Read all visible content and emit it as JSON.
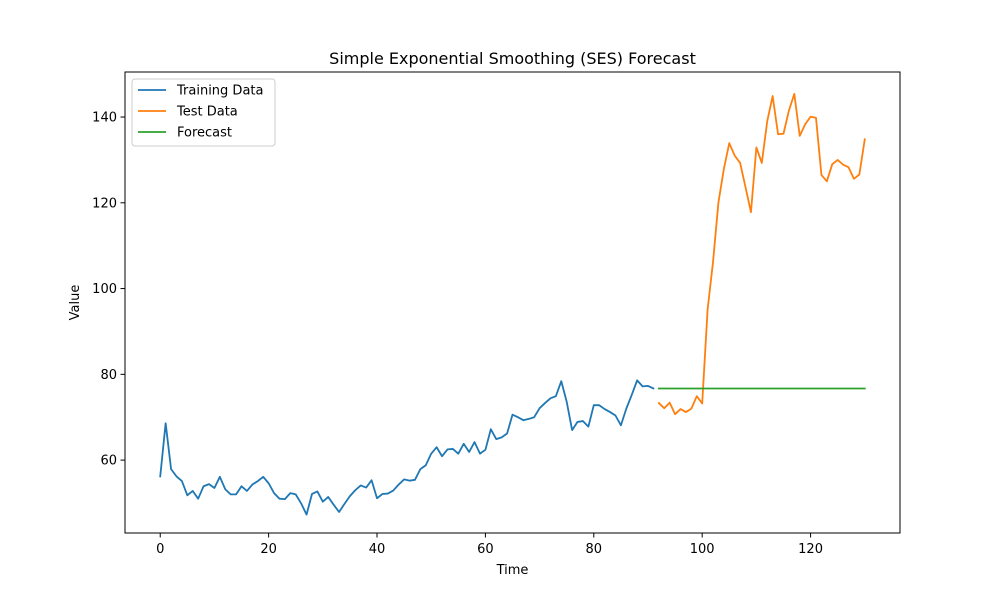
{
  "chart_data": {
    "type": "line",
    "title": "Simple Exponential Smoothing (SES) Forecast",
    "xlabel": "Time",
    "ylabel": "Value",
    "xlim": [
      -6.5,
      136.5
    ],
    "ylim": [
      43,
      150.5
    ],
    "xticks": [
      0,
      20,
      40,
      60,
      80,
      100,
      120
    ],
    "yticks": [
      60,
      80,
      100,
      120,
      140
    ],
    "grid": false,
    "legend_position": "top-left",
    "series": [
      {
        "name": "Training Data",
        "color": "#1f77b4",
        "x_start": 0,
        "values": [
          56.2,
          68.6,
          57.9,
          56.2,
          55.1,
          51.8,
          52.8,
          51.0,
          53.9,
          54.4,
          53.5,
          56.1,
          53.2,
          52.0,
          52.0,
          53.9,
          52.8,
          54.3,
          55.1,
          56.1,
          54.6,
          52.3,
          51.0,
          50.9,
          52.3,
          52.0,
          49.9,
          47.3,
          52.1,
          52.7,
          50.3,
          51.4,
          49.6,
          47.9,
          49.8,
          51.6,
          53.0,
          54.1,
          53.6,
          55.3,
          51.1,
          52.1,
          52.2,
          52.9,
          54.3,
          55.5,
          55.2,
          55.4,
          57.9,
          58.8,
          61.5,
          63.0,
          60.9,
          62.5,
          62.6,
          61.5,
          63.8,
          61.9,
          64.2,
          61.5,
          62.4,
          67.2,
          64.9,
          65.3,
          66.2,
          70.6,
          70.0,
          69.3,
          69.6,
          70.0,
          72.1,
          73.3,
          74.4,
          74.9,
          78.4,
          73.6,
          67.0,
          68.9,
          69.1,
          67.8,
          72.8,
          72.8,
          71.9,
          71.2,
          70.4,
          68.1,
          72.0,
          75.2,
          78.6,
          77.2,
          77.3,
          76.7
        ]
      },
      {
        "name": "Test Data",
        "color": "#ff7f0e",
        "x_start": 92,
        "values": [
          73.3,
          72.1,
          73.4,
          70.7,
          71.9,
          71.2,
          72.0,
          74.9,
          73.2,
          95.1,
          106.2,
          120.1,
          127.9,
          133.9,
          131.0,
          129.3,
          123.6,
          117.8,
          132.9,
          129.3,
          139.0,
          144.9,
          136.0,
          136.1,
          141.5,
          145.4,
          135.6,
          138.3,
          140.1,
          139.8,
          126.5,
          125.0,
          129.0,
          130.0,
          128.9,
          128.3,
          125.6,
          126.6,
          134.8
        ]
      },
      {
        "name": "Forecast",
        "color": "#2ca02c",
        "x_start": 92,
        "values": [
          76.7,
          76.7,
          76.7,
          76.7,
          76.7,
          76.7,
          76.7,
          76.7,
          76.7,
          76.7,
          76.7,
          76.7,
          76.7,
          76.7,
          76.7,
          76.7,
          76.7,
          76.7,
          76.7,
          76.7,
          76.7,
          76.7,
          76.7,
          76.7,
          76.7,
          76.7,
          76.7,
          76.7,
          76.7,
          76.7,
          76.7,
          76.7,
          76.7,
          76.7,
          76.7,
          76.7,
          76.7,
          76.7,
          76.7
        ]
      }
    ]
  }
}
